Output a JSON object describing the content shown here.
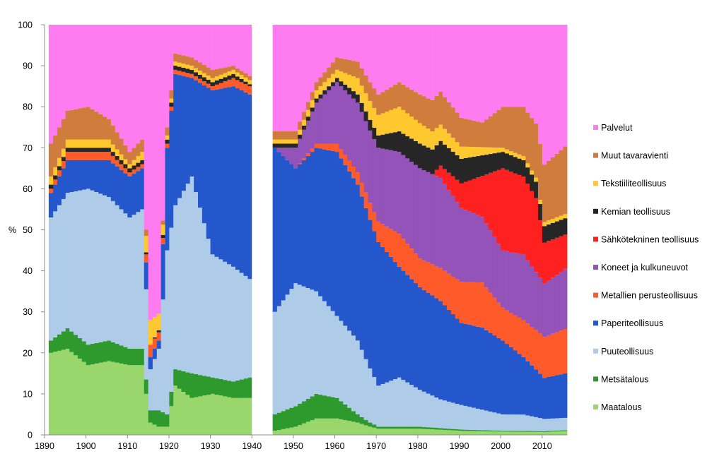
{
  "chart_data": {
    "type": "area",
    "stacked": true,
    "ylabel": "%",
    "xlabel": "",
    "title": "",
    "xlim": [
      1890,
      2016
    ],
    "ylim": [
      0,
      100
    ],
    "xticks": [
      1890,
      1900,
      1910,
      1920,
      1930,
      1940,
      1950,
      1960,
      1970,
      1980,
      1990,
      2000,
      2010
    ],
    "yticks": [
      0,
      10,
      20,
      30,
      40,
      50,
      60,
      70,
      80,
      90,
      100
    ],
    "gaps": [
      [
        1940,
        1945
      ]
    ],
    "legend_position": "right",
    "series": [
      {
        "name": "Maatalous",
        "color": "#99d66b",
        "anchors": [
          [
            1891,
            20
          ],
          [
            1895,
            21
          ],
          [
            1900,
            17
          ],
          [
            1905,
            18
          ],
          [
            1910,
            17
          ],
          [
            1913,
            17
          ],
          [
            1915,
            3
          ],
          [
            1917,
            2
          ],
          [
            1919,
            2
          ],
          [
            1921,
            12
          ],
          [
            1925,
            9
          ],
          [
            1930,
            10
          ],
          [
            1935,
            9
          ],
          [
            1939,
            9
          ],
          [
            1945,
            1
          ],
          [
            1950,
            2
          ],
          [
            1955,
            4
          ],
          [
            1960,
            4
          ],
          [
            1965,
            3
          ],
          [
            1968,
            2
          ],
          [
            1970,
            1.5
          ],
          [
            1980,
            1.5
          ],
          [
            1990,
            1
          ],
          [
            2000,
            0.8
          ],
          [
            2010,
            0.7
          ],
          [
            2016,
            1
          ]
        ]
      },
      {
        "name": "Metsätalous",
        "color": "#2e9a2e",
        "anchors": [
          [
            1891,
            3
          ],
          [
            1895,
            5
          ],
          [
            1900,
            5
          ],
          [
            1905,
            5
          ],
          [
            1910,
            4
          ],
          [
            1913,
            4
          ],
          [
            1915,
            3
          ],
          [
            1917,
            4
          ],
          [
            1919,
            3
          ],
          [
            1921,
            4
          ],
          [
            1925,
            6
          ],
          [
            1930,
            4
          ],
          [
            1935,
            4
          ],
          [
            1939,
            5
          ],
          [
            1945,
            4
          ],
          [
            1950,
            5
          ],
          [
            1955,
            6
          ],
          [
            1960,
            5
          ],
          [
            1965,
            2
          ],
          [
            1968,
            1
          ],
          [
            1970,
            0.5
          ],
          [
            1980,
            0.5
          ],
          [
            1990,
            0.3
          ],
          [
            2000,
            0.2
          ],
          [
            2010,
            0.2
          ],
          [
            2016,
            0.2
          ]
        ]
      },
      {
        "name": "Puuteollisuus",
        "color": "#aecbe8",
        "anchors": [
          [
            1891,
            30
          ],
          [
            1895,
            33
          ],
          [
            1900,
            38
          ],
          [
            1905,
            35
          ],
          [
            1910,
            32
          ],
          [
            1913,
            34
          ],
          [
            1915,
            10
          ],
          [
            1917,
            15
          ],
          [
            1919,
            40
          ],
          [
            1921,
            40
          ],
          [
            1925,
            48
          ],
          [
            1930,
            30
          ],
          [
            1935,
            28
          ],
          [
            1939,
            24
          ],
          [
            1945,
            25
          ],
          [
            1950,
            30
          ],
          [
            1955,
            25
          ],
          [
            1960,
            20
          ],
          [
            1965,
            18
          ],
          [
            1970,
            10
          ],
          [
            1975,
            12
          ],
          [
            1980,
            9
          ],
          [
            1985,
            7
          ],
          [
            1990,
            6
          ],
          [
            1995,
            5
          ],
          [
            2000,
            4
          ],
          [
            2005,
            4
          ],
          [
            2010,
            3
          ],
          [
            2016,
            3
          ]
        ]
      },
      {
        "name": "Paperiteollisuus",
        "color": "#2456cc",
        "anchors": [
          [
            1891,
            6
          ],
          [
            1895,
            8
          ],
          [
            1900,
            7
          ],
          [
            1905,
            9
          ],
          [
            1910,
            10
          ],
          [
            1913,
            10
          ],
          [
            1915,
            3
          ],
          [
            1917,
            2
          ],
          [
            1919,
            25
          ],
          [
            1921,
            32
          ],
          [
            1925,
            24
          ],
          [
            1930,
            40
          ],
          [
            1935,
            44
          ],
          [
            1939,
            45
          ],
          [
            1945,
            40
          ],
          [
            1950,
            28
          ],
          [
            1955,
            35
          ],
          [
            1960,
            40
          ],
          [
            1965,
            38
          ],
          [
            1970,
            35
          ],
          [
            1975,
            27
          ],
          [
            1980,
            25
          ],
          [
            1985,
            24
          ],
          [
            1990,
            20
          ],
          [
            1995,
            20
          ],
          [
            2000,
            18
          ],
          [
            2005,
            14
          ],
          [
            2010,
            10
          ],
          [
            2016,
            11
          ]
        ]
      },
      {
        "name": "Metallien perusteollisuus",
        "color": "#ff5b2a",
        "anchors": [
          [
            1891,
            1
          ],
          [
            1895,
            2
          ],
          [
            1900,
            2
          ],
          [
            1905,
            2
          ],
          [
            1910,
            1
          ],
          [
            1913,
            1
          ],
          [
            1915,
            3
          ],
          [
            1917,
            2
          ],
          [
            1919,
            1
          ],
          [
            1921,
            1
          ],
          [
            1925,
            1
          ],
          [
            1930,
            1
          ],
          [
            1935,
            2
          ],
          [
            1939,
            2
          ],
          [
            1945,
            0
          ],
          [
            1950,
            0
          ],
          [
            1955,
            1
          ],
          [
            1960,
            2
          ],
          [
            1965,
            3
          ],
          [
            1970,
            5
          ],
          [
            1975,
            8
          ],
          [
            1980,
            7
          ],
          [
            1985,
            8
          ],
          [
            1990,
            10
          ],
          [
            1995,
            11
          ],
          [
            2000,
            8
          ],
          [
            2005,
            9
          ],
          [
            2010,
            10
          ],
          [
            2016,
            11
          ]
        ]
      },
      {
        "name": "Koneet ja kulkuneuvot",
        "color": "#9453b8",
        "anchors": [
          [
            1891,
            0
          ],
          [
            1900,
            0
          ],
          [
            1913,
            0
          ],
          [
            1919,
            0
          ],
          [
            1939,
            0
          ],
          [
            1945,
            0
          ],
          [
            1950,
            5
          ],
          [
            1955,
            10
          ],
          [
            1960,
            15
          ],
          [
            1965,
            17
          ],
          [
            1970,
            18
          ],
          [
            1975,
            20
          ],
          [
            1980,
            22
          ],
          [
            1985,
            22
          ],
          [
            1990,
            18
          ],
          [
            1995,
            16
          ],
          [
            2000,
            14
          ],
          [
            2005,
            16
          ],
          [
            2010,
            13
          ],
          [
            2016,
            15
          ]
        ]
      },
      {
        "name": "Sähkötekninen teollisuus",
        "color": "#ff2020",
        "anchors": [
          [
            1891,
            0
          ],
          [
            1900,
            0
          ],
          [
            1913,
            0
          ],
          [
            1939,
            0
          ],
          [
            1945,
            0
          ],
          [
            1970,
            0
          ],
          [
            1980,
            0
          ],
          [
            1983,
            0
          ],
          [
            1985,
            3
          ],
          [
            1990,
            6
          ],
          [
            1995,
            10
          ],
          [
            2000,
            20
          ],
          [
            2005,
            19
          ],
          [
            2008,
            18
          ],
          [
            2010,
            10
          ],
          [
            2016,
            8
          ]
        ]
      },
      {
        "name": "Kemian teollisuus",
        "color": "#262626",
        "anchors": [
          [
            1891,
            1
          ],
          [
            1900,
            1
          ],
          [
            1910,
            1
          ],
          [
            1913,
            1
          ],
          [
            1915,
            0
          ],
          [
            1919,
            1
          ],
          [
            1925,
            1
          ],
          [
            1930,
            1
          ],
          [
            1935,
            1
          ],
          [
            1939,
            0.5
          ],
          [
            1945,
            1
          ],
          [
            1950,
            1
          ],
          [
            1955,
            1
          ],
          [
            1960,
            1
          ],
          [
            1965,
            2
          ],
          [
            1970,
            3
          ],
          [
            1975,
            5
          ],
          [
            1980,
            6
          ],
          [
            1985,
            6
          ],
          [
            1990,
            6
          ],
          [
            1995,
            5
          ],
          [
            2000,
            4
          ],
          [
            2005,
            4
          ],
          [
            2010,
            4
          ],
          [
            2016,
            4
          ]
        ]
      },
      {
        "name": "Tekstiiliteollisuus",
        "color": "#ffc82e",
        "anchors": [
          [
            1891,
            2
          ],
          [
            1895,
            2
          ],
          [
            1900,
            2
          ],
          [
            1905,
            2
          ],
          [
            1910,
            1
          ],
          [
            1913,
            2
          ],
          [
            1915,
            6
          ],
          [
            1917,
            4
          ],
          [
            1919,
            1
          ],
          [
            1925,
            1
          ],
          [
            1930,
            1
          ],
          [
            1935,
            1
          ],
          [
            1939,
            1
          ],
          [
            1945,
            1
          ],
          [
            1950,
            1
          ],
          [
            1955,
            2
          ],
          [
            1960,
            2
          ],
          [
            1965,
            4
          ],
          [
            1970,
            5
          ],
          [
            1975,
            6
          ],
          [
            1980,
            5
          ],
          [
            1985,
            4
          ],
          [
            1990,
            3
          ],
          [
            1995,
            2
          ],
          [
            2000,
            1
          ],
          [
            2005,
            1
          ],
          [
            2010,
            1
          ],
          [
            2016,
            1
          ]
        ]
      },
      {
        "name": "Muut tavaravienti",
        "color": "#d07c3c",
        "anchors": [
          [
            1891,
            8
          ],
          [
            1895,
            7
          ],
          [
            1900,
            8
          ],
          [
            1905,
            5
          ],
          [
            1910,
            3
          ],
          [
            1913,
            3
          ],
          [
            1915,
            0
          ],
          [
            1917,
            0
          ],
          [
            1919,
            2
          ],
          [
            1921,
            2
          ],
          [
            1925,
            2
          ],
          [
            1930,
            2
          ],
          [
            1935,
            1
          ],
          [
            1939,
            1
          ],
          [
            1945,
            2
          ],
          [
            1950,
            2
          ],
          [
            1955,
            2
          ],
          [
            1960,
            3
          ],
          [
            1965,
            4
          ],
          [
            1970,
            5
          ],
          [
            1975,
            6
          ],
          [
            1980,
            7
          ],
          [
            1985,
            8
          ],
          [
            1990,
            7
          ],
          [
            1995,
            6
          ],
          [
            2000,
            10
          ],
          [
            2005,
            12
          ],
          [
            2010,
            14
          ],
          [
            2016,
            17
          ]
        ]
      },
      {
        "name": "Palvelut",
        "color": "#ff7bf0",
        "remainder": true
      }
    ]
  }
}
